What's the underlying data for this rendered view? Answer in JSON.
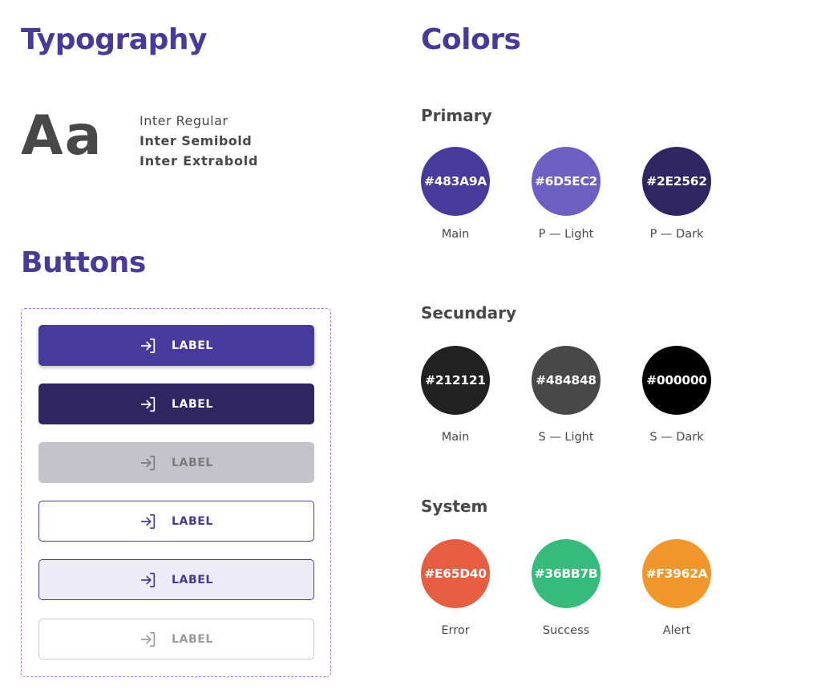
{
  "typography": {
    "title": "Typography",
    "sample": "Aa",
    "fonts": [
      "Inter Regular",
      "Inter Semibold",
      "Inter Extrabold"
    ]
  },
  "buttons": {
    "title": "Buttons",
    "icon": "login-icon",
    "items": [
      {
        "variant": "contained",
        "label": "LABEL"
      },
      {
        "variant": "contained-dark",
        "label": "LABEL"
      },
      {
        "variant": "contained-disabled",
        "label": "LABEL"
      },
      {
        "variant": "outlined",
        "label": "LABEL"
      },
      {
        "variant": "outlined-tinted",
        "label": "LABEL"
      },
      {
        "variant": "outlined-disabled",
        "label": "LABEL"
      }
    ]
  },
  "colors": {
    "title": "Colors",
    "groups": [
      {
        "name": "Primary",
        "swatches": [
          {
            "hex": "#483A9A",
            "label": "Main"
          },
          {
            "hex": "#6D5EC2",
            "label": "P — Light"
          },
          {
            "hex": "#2E2562",
            "label": "P — Dark"
          }
        ]
      },
      {
        "name": "Secundary",
        "swatches": [
          {
            "hex": "#212121",
            "label": "Main"
          },
          {
            "hex": "#484848",
            "label": "S — Light"
          },
          {
            "hex": "#000000",
            "label": "S — Dark"
          }
        ]
      },
      {
        "name": "System",
        "swatches": [
          {
            "hex": "#E65D40",
            "label": "Error"
          },
          {
            "hex": "#36BB7B",
            "label": "Success"
          },
          {
            "hex": "#F3962A",
            "label": "Alert"
          }
        ]
      }
    ]
  }
}
